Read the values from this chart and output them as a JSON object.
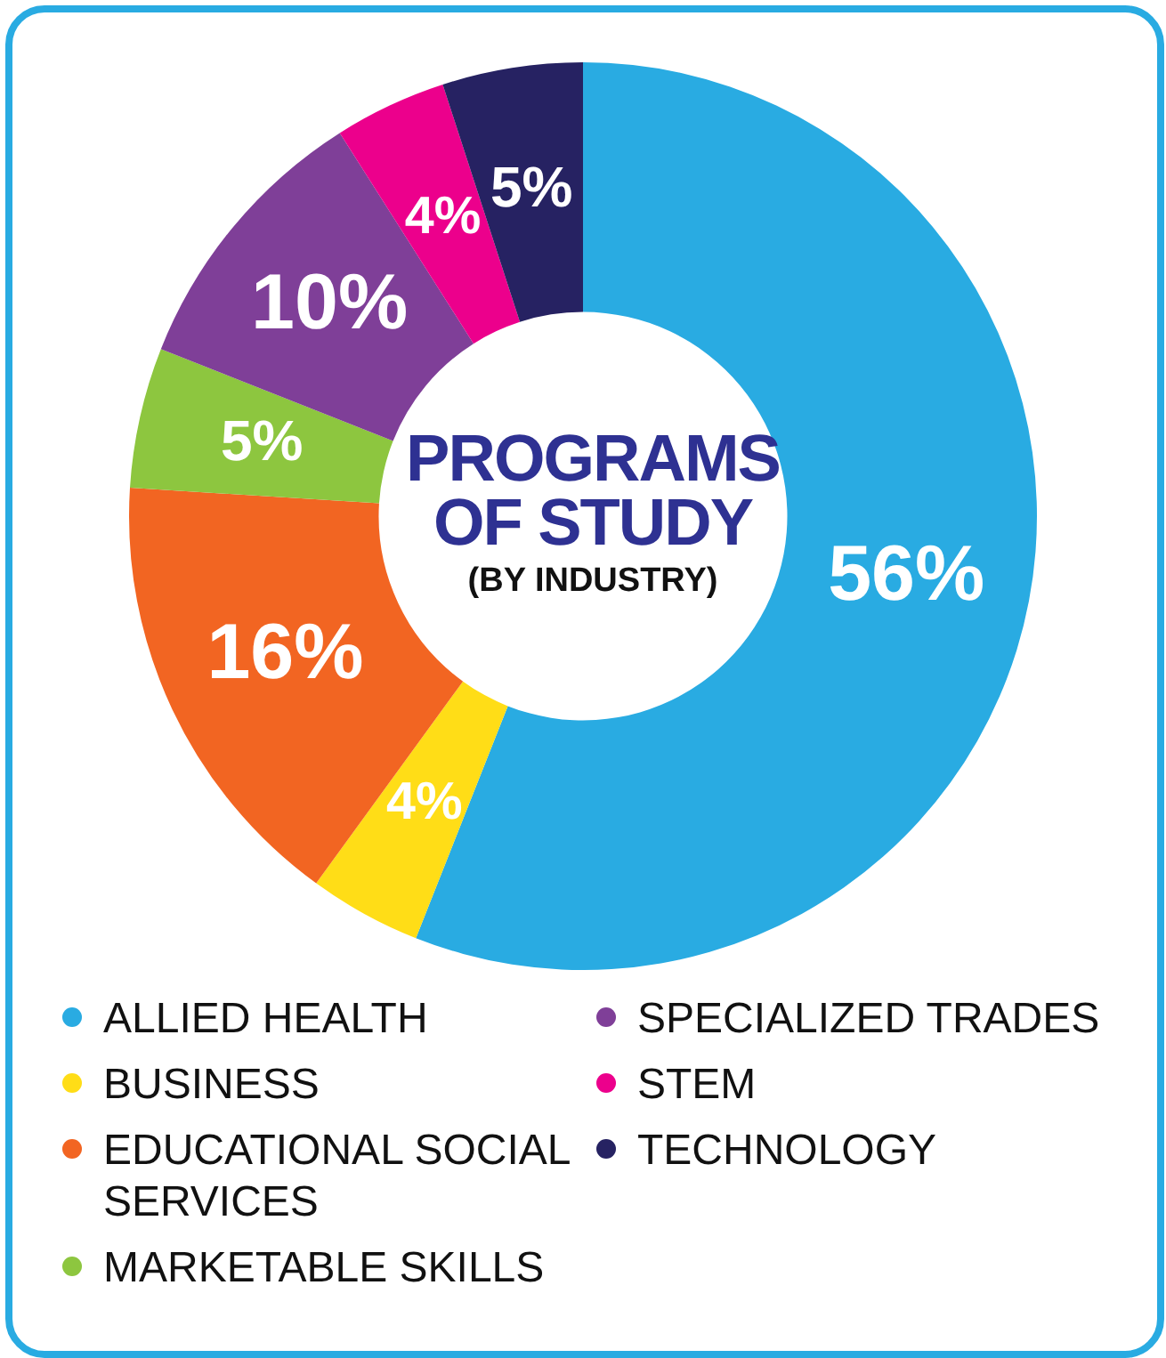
{
  "chart_data": {
    "type": "donut",
    "title": "PROGRAMS OF STUDY",
    "subtitle": "(BY INDUSTRY)",
    "categories": [
      "ALLIED HEALTH",
      "BUSINESS",
      "EDUCATIONAL SOCIAL SERVICES",
      "MARKETABLE SKILLS",
      "SPECIALIZED TRADES",
      "STEM",
      "TECHNOLOGY"
    ],
    "values": [
      56,
      4,
      16,
      5,
      10,
      4,
      5
    ],
    "colors": [
      "#29abe2",
      "#ffdd17",
      "#f26522",
      "#8dc63f",
      "#7f3f98",
      "#ec008c",
      "#262262"
    ],
    "value_labels": [
      "56%",
      "4%",
      "16%",
      "5%",
      "10%",
      "4%",
      "5%"
    ],
    "legend": "bottom"
  }
}
